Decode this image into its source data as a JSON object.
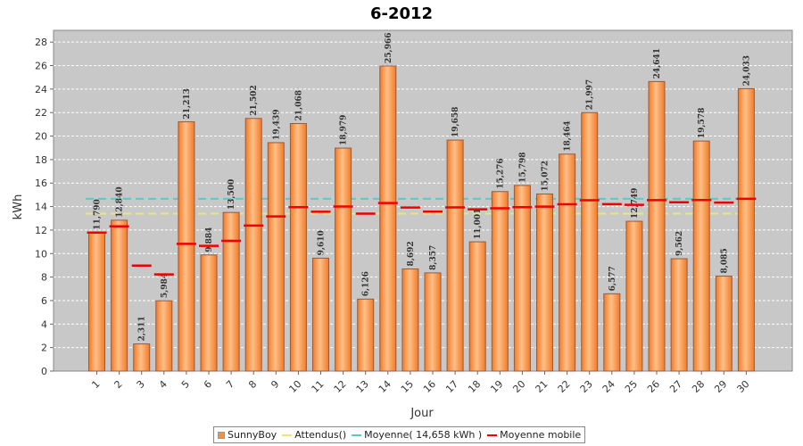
{
  "chart_data": {
    "type": "bar",
    "title": "6-2012",
    "xlabel": "Jour",
    "ylabel": "kWh",
    "ylim": [
      0,
      29
    ],
    "yticks": [
      0,
      2,
      4,
      6,
      8,
      10,
      12,
      14,
      16,
      18,
      20,
      22,
      24,
      26,
      28
    ],
    "grid": true,
    "legend_position": "bottom",
    "categories": [
      "1",
      "2",
      "3",
      "4",
      "5",
      "6",
      "7",
      "8",
      "9",
      "10",
      "11",
      "12",
      "13",
      "14",
      "15",
      "16",
      "17",
      "18",
      "19",
      "20",
      "21",
      "22",
      "23",
      "24",
      "25",
      "26",
      "27",
      "28",
      "29",
      "30"
    ],
    "series": [
      {
        "name": "SunnyBoy",
        "kind": "bar",
        "color": "#f7913f",
        "values": [
          11.79,
          12.84,
          2.311,
          5.984,
          21.213,
          9.884,
          13.5,
          21.502,
          19.439,
          21.068,
          9.61,
          18.979,
          6.126,
          25.966,
          8.692,
          8.357,
          19.658,
          11.001,
          15.276,
          15.798,
          15.072,
          18.464,
          21.997,
          6.577,
          12.749,
          24.641,
          9.562,
          19.578,
          8.085,
          24.033
        ],
        "labels": [
          "11,790",
          "12,840",
          "2,311",
          "5,984",
          "21,213",
          "9,884",
          "13,500",
          "21,502",
          "19,439",
          "21,068",
          "9,610",
          "18,979",
          "6,126",
          "25,966",
          "8,692",
          "8,357",
          "19,658",
          "11,001",
          "15,276",
          "15,798",
          "15,072",
          "18,464",
          "21,997",
          "6,577",
          "12,749",
          "24,641",
          "9,562",
          "19,578",
          "8,085",
          "24,033"
        ]
      },
      {
        "name": "Attendus()",
        "kind": "line",
        "color": "#e8e87a",
        "value": 13.4
      },
      {
        "name": "Moyenne( 14,658 kWh )",
        "kind": "line",
        "color": "#5cc8c8",
        "value": 14.658
      },
      {
        "name": "Moyenne mobile",
        "kind": "marker",
        "color": "#ee0000",
        "values": [
          11.79,
          12.32,
          8.98,
          8.23,
          10.83,
          10.66,
          11.08,
          12.38,
          13.16,
          13.95,
          13.56,
          14.01,
          13.4,
          14.3,
          13.92,
          13.57,
          13.93,
          13.77,
          13.85,
          13.95,
          14.0,
          14.2,
          14.54,
          14.21,
          14.15,
          14.55,
          14.37,
          14.56,
          14.34,
          14.66
        ]
      }
    ]
  }
}
